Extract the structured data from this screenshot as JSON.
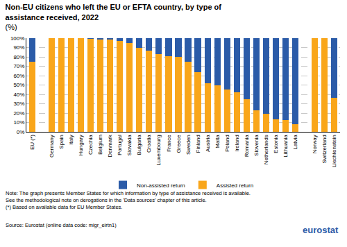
{
  "chart_data": {
    "type": "bar",
    "stacked": true,
    "title": "Non-EU citizens who left the EU or EFTA country, by type of assistance received, 2022",
    "subtitle": "(%)",
    "categories": [
      "EU (*)",
      null,
      "Germany",
      "Spain",
      "Italy",
      "Hungary",
      "Czechia",
      "Belgium",
      "Denmark",
      "Portugal",
      "Slovakia",
      "Bulgaria",
      "Croatia",
      "Luxembourg",
      "France",
      "Greece",
      "Sweden",
      "Finland",
      "Austria",
      "Malta",
      "Poland",
      "Ireland",
      "Romania",
      "Slovenia",
      "Netherlands",
      "Estonia",
      "Lithuania",
      "Latvia",
      null,
      "Norway",
      "Switzerland",
      "Liechtenstein"
    ],
    "series": [
      {
        "name": "Assisted return",
        "color": "#f9a61a",
        "values": [
          74.5,
          null,
          100,
          100,
          100,
          100,
          99,
          98.5,
          98.5,
          97,
          95,
          90,
          86.5,
          83,
          80.5,
          80,
          75,
          64,
          51.5,
          50,
          45,
          42,
          34.5,
          23,
          19,
          13.5,
          12.5,
          8.5,
          null,
          100,
          100,
          36.5
        ]
      },
      {
        "name": "Non-assisted return",
        "color": "#2b5ba8",
        "values": [
          25.5,
          null,
          0,
          0,
          0,
          0,
          1,
          1.5,
          1.5,
          3,
          5,
          10,
          13.5,
          17,
          19.5,
          20,
          25,
          36,
          48.5,
          50,
          55,
          58,
          65.5,
          77,
          81,
          86.5,
          87.5,
          91.5,
          null,
          0,
          0,
          63.5
        ]
      }
    ],
    "ylim": [
      0,
      100
    ],
    "yticks": [
      {
        "value": 0,
        "label": "0%"
      },
      {
        "value": 10,
        "label": "10%"
      },
      {
        "value": 20,
        "label": "20%"
      },
      {
        "value": 30,
        "label": "30%"
      },
      {
        "value": 40,
        "label": "40%"
      },
      {
        "value": 50,
        "label": "50%"
      },
      {
        "value": 60,
        "label": "60%"
      },
      {
        "value": 70,
        "label": "70%"
      },
      {
        "value": 80,
        "label": "80%"
      },
      {
        "value": 90,
        "label": "90%"
      },
      {
        "value": 100,
        "label": "100%"
      }
    ],
    "grid": true,
    "legend": "bottom",
    "notes": [
      "Note: The graph presents Member States for which information by type of assistance received is available.",
      "See the methodological note on derogations in the 'Data sources' chapter of this article.",
      "(*) Based on available data for EU Member States."
    ],
    "source": "Source: Eurostat (online data code: migr_eirtn1)",
    "logo": "eurostat"
  }
}
